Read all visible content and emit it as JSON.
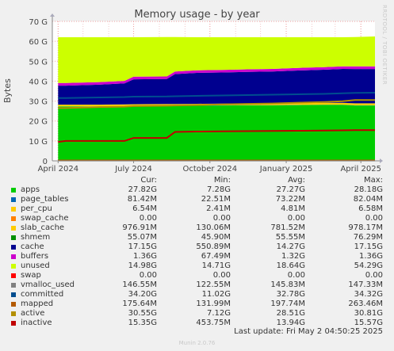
{
  "chart_data": {
    "type": "area",
    "title": "Memory usage - by year",
    "ylabel": "Bytes",
    "side_label": "RRDTOOL / TOBI OETIKER",
    "ylim": [
      0,
      70
    ],
    "y_ticks": [
      "0",
      "10 G",
      "20 G",
      "30 G",
      "40 G",
      "50 G",
      "60 G",
      "70 G"
    ],
    "xlim": [
      "2024-03-25",
      "2025-04-18"
    ],
    "x_ticks": [
      {
        "date": "2024-04-01",
        "label": "April 2024"
      },
      {
        "date": "2024-07-01",
        "label": "July 2024"
      },
      {
        "date": "2024-10-01",
        "label": "October 2024"
      },
      {
        "date": "2025-01-01",
        "label": "January 2025"
      },
      {
        "date": "2025-04-01",
        "label": "April 2025"
      }
    ],
    "grid": true,
    "x": [
      "2024-04-01",
      "2024-04-10",
      "2024-05-20",
      "2024-06-20",
      "2024-07-01",
      "2024-08-10",
      "2024-08-20",
      "2024-09-15",
      "2024-10-15",
      "2024-11-15",
      "2024-12-15",
      "2025-01-15",
      "2025-02-15",
      "2025-03-10",
      "2025-03-25",
      "2025-04-18"
    ],
    "series": [
      {
        "name": "apps",
        "color": "#00cc00",
        "values": [
          27.3,
          27.3,
          27.3,
          27.4,
          27.5,
          27.6,
          27.6,
          27.7,
          27.8,
          27.9,
          27.9,
          28.0,
          28.1,
          28.1,
          27.8,
          27.8
        ]
      },
      {
        "name": "page_tables",
        "color": "#0066b3",
        "values": [
          0.08,
          0.08,
          0.08,
          0.08,
          0.08,
          0.08,
          0.08,
          0.08,
          0.08,
          0.08,
          0.08,
          0.08,
          0.08,
          0.08,
          0.08,
          0.08
        ]
      },
      {
        "name": "per_cpu",
        "color": "#ffcc00",
        "values": [
          0.005,
          0.005,
          0.005,
          0.005,
          0.005,
          0.005,
          0.005,
          0.005,
          0.005,
          0.005,
          0.005,
          0.005,
          0.005,
          0.005,
          0.005,
          0.005
        ]
      },
      {
        "name": "slab_cache",
        "color": "#ffcc00",
        "values": [
          0.8,
          0.8,
          0.8,
          0.8,
          0.8,
          0.8,
          0.8,
          0.8,
          0.8,
          0.8,
          0.8,
          0.9,
          0.9,
          0.9,
          0.95,
          0.95
        ]
      },
      {
        "name": "shmem",
        "color": "#008f00",
        "values": [
          0.055,
          0.055,
          0.055,
          0.055,
          0.055,
          0.055,
          0.055,
          0.055,
          0.055,
          0.055,
          0.055,
          0.055,
          0.055,
          0.055,
          0.055,
          0.055
        ]
      },
      {
        "name": "cache",
        "color": "#00008f",
        "values": [
          9.5,
          9.5,
          10.0,
          10.5,
          12.5,
          12.5,
          15.0,
          15.5,
          15.6,
          15.8,
          16.0,
          16.3,
          16.6,
          17.0,
          17.2,
          17.2
        ]
      },
      {
        "name": "buffers",
        "color": "#cc00cc",
        "values": [
          1.3,
          1.3,
          1.3,
          1.3,
          1.3,
          1.3,
          1.3,
          1.3,
          1.3,
          1.3,
          1.3,
          1.3,
          1.3,
          1.3,
          1.36,
          1.36
        ]
      },
      {
        "name": "unused",
        "color": "#ccff00",
        "values": [
          23.0,
          23.0,
          22.5,
          21.9,
          19.8,
          19.8,
          17.3,
          16.6,
          16.4,
          16.1,
          15.9,
          15.4,
          15.0,
          14.6,
          14.7,
          15.0
        ]
      },
      {
        "name": "swap",
        "color": "#ff0000",
        "values": [
          0,
          0,
          0,
          0,
          0,
          0,
          0,
          0,
          0,
          0,
          0,
          0,
          0,
          0,
          0,
          0
        ]
      }
    ],
    "lines": [
      {
        "name": "vmalloc_used",
        "color": "#808080",
        "values": [
          0.14,
          0.14,
          0.14,
          0.14,
          0.14,
          0.14,
          0.14,
          0.14,
          0.14,
          0.14,
          0.14,
          0.14,
          0.14,
          0.14,
          0.15,
          0.15
        ]
      },
      {
        "name": "committed",
        "color": "#004d8f",
        "values": [
          31.5,
          31.5,
          31.8,
          32.0,
          32.2,
          32.3,
          32.4,
          32.6,
          32.8,
          33.0,
          33.2,
          33.4,
          33.6,
          33.9,
          34.1,
          34.2
        ]
      },
      {
        "name": "mapped",
        "color": "#b35a00",
        "values": [
          0.18,
          0.18,
          0.18,
          0.18,
          0.18,
          0.18,
          0.18,
          0.18,
          0.18,
          0.18,
          0.18,
          0.18,
          0.18,
          0.18,
          0.18,
          0.18
        ]
      },
      {
        "name": "active",
        "color": "#b38f00",
        "values": [
          26.5,
          26.5,
          27.0,
          27.2,
          27.5,
          27.7,
          27.8,
          28.0,
          28.3,
          28.6,
          28.8,
          29.2,
          29.5,
          29.9,
          30.5,
          30.5
        ]
      },
      {
        "name": "inactive",
        "color": "#c00000",
        "values": [
          9.5,
          10.0,
          10.0,
          10.0,
          11.5,
          11.5,
          14.5,
          14.7,
          14.8,
          14.9,
          15.0,
          15.1,
          15.2,
          15.3,
          15.4,
          15.4
        ]
      }
    ]
  },
  "legend": {
    "headers": [
      "Cur:",
      "Min:",
      "Avg:",
      "Max:"
    ],
    "rows": [
      {
        "name": "apps",
        "color": "#00cc00",
        "cur": "27.82G",
        "min": "7.28G",
        "avg": "27.27G",
        "max": "28.18G"
      },
      {
        "name": "page_tables",
        "color": "#0066b3",
        "cur": "81.42M",
        "min": "22.51M",
        "avg": "73.22M",
        "max": "82.04M"
      },
      {
        "name": "per_cpu",
        "color": "#ffcc00",
        "cur": "6.54M",
        "min": "2.41M",
        "avg": "4.81M",
        "max": "6.58M"
      },
      {
        "name": "swap_cache",
        "color": "#ff8000",
        "cur": "0.00",
        "min": "0.00",
        "avg": "0.00",
        "max": "0.00"
      },
      {
        "name": "slab_cache",
        "color": "#ffcc00",
        "cur": "976.91M",
        "min": "130.06M",
        "avg": "781.52M",
        "max": "978.17M"
      },
      {
        "name": "shmem",
        "color": "#008f00",
        "cur": "55.07M",
        "min": "45.90M",
        "avg": "55.55M",
        "max": "76.29M"
      },
      {
        "name": "cache",
        "color": "#00008f",
        "cur": "17.15G",
        "min": "550.89M",
        "avg": "14.27G",
        "max": "17.15G"
      },
      {
        "name": "buffers",
        "color": "#cc00cc",
        "cur": "1.36G",
        "min": "67.49M",
        "avg": "1.32G",
        "max": "1.36G"
      },
      {
        "name": "unused",
        "color": "#ccff00",
        "cur": "14.98G",
        "min": "14.71G",
        "avg": "18.64G",
        "max": "54.29G"
      },
      {
        "name": "swap",
        "color": "#ff0000",
        "cur": "0.00",
        "min": "0.00",
        "avg": "0.00",
        "max": "0.00"
      },
      {
        "name": "vmalloc_used",
        "color": "#808080",
        "cur": "146.55M",
        "min": "122.55M",
        "avg": "145.83M",
        "max": "147.33M"
      },
      {
        "name": "committed",
        "color": "#004d8f",
        "cur": "34.20G",
        "min": "11.02G",
        "avg": "32.78G",
        "max": "34.32G"
      },
      {
        "name": "mapped",
        "color": "#b35a00",
        "cur": "175.64M",
        "min": "131.99M",
        "avg": "197.74M",
        "max": "263.46M"
      },
      {
        "name": "active",
        "color": "#b38f00",
        "cur": "30.55G",
        "min": "7.12G",
        "avg": "28.51G",
        "max": "30.81G"
      },
      {
        "name": "inactive",
        "color": "#c00000",
        "cur": "15.35G",
        "min": "453.75M",
        "avg": "13.94G",
        "max": "15.57G"
      }
    ]
  },
  "footer": {
    "last_update": "Last update: Fri May  2 04:50:25 2025",
    "munin": "Munin 2.0.76"
  }
}
